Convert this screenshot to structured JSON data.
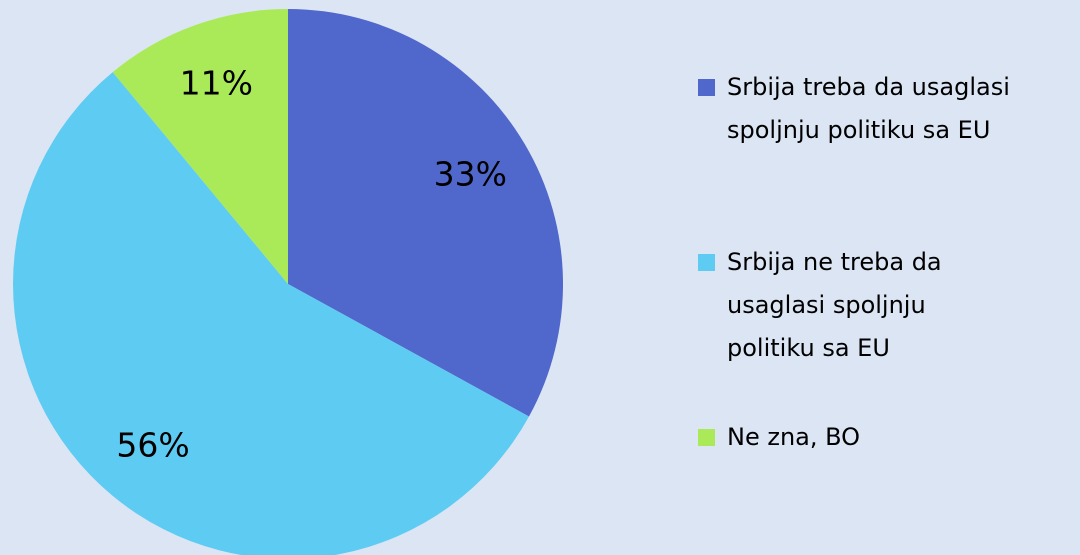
{
  "chart_data": {
    "type": "pie",
    "categories": [
      "Srbija treba da usaglasi spoljnju politiku sa EU",
      "Srbija ne treba da usaglasi spoljnju politiku sa EU",
      "Ne zna, BO"
    ],
    "values": [
      33,
      56,
      11
    ],
    "value_labels": [
      "33%",
      "56%",
      "11%"
    ],
    "colors": [
      "#5067cc",
      "#5ecbf3",
      "#aaea58"
    ],
    "legend": "right"
  }
}
